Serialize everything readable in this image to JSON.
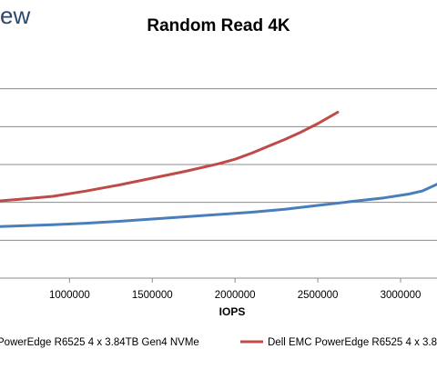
{
  "brand": {
    "text": "ew",
    "color": "#2b4a6b"
  },
  "chart_data": {
    "type": "line",
    "title": "Random Read 4K",
    "xlabel": "IOPS",
    "ylabel": "",
    "xlim": [
      580000,
      3220000
    ],
    "ylim": [
      0,
      3
    ],
    "x_ticks": [
      1000000,
      1500000,
      2000000,
      2500000,
      3000000
    ],
    "x_tick_labels": [
      "1000000",
      "1500000",
      "2000000",
      "2500000",
      "3000000"
    ],
    "y_gridlines": [
      0.5,
      1.0,
      1.5,
      2.0,
      2.5
    ],
    "grid": true,
    "legend_position": "bottom",
    "series": [
      {
        "name": "PowerEdge R6525 4 x 3.84TB Gen4 NVMe",
        "color": "#4a7ebb",
        "points": [
          [
            580000,
            0.68
          ],
          [
            700000,
            0.69
          ],
          [
            900000,
            0.705
          ],
          [
            1100000,
            0.725
          ],
          [
            1300000,
            0.75
          ],
          [
            1500000,
            0.78
          ],
          [
            1700000,
            0.81
          ],
          [
            1900000,
            0.84
          ],
          [
            2100000,
            0.87
          ],
          [
            2300000,
            0.91
          ],
          [
            2500000,
            0.96
          ],
          [
            2700000,
            1.01
          ],
          [
            2900000,
            1.06
          ],
          [
            3050000,
            1.11
          ],
          [
            3130000,
            1.15
          ],
          [
            3220000,
            1.24
          ]
        ]
      },
      {
        "name": "Dell EMC PowerEdge R6525 4 x 3.8",
        "color": "#be4b48",
        "points": [
          [
            580000,
            1.02
          ],
          [
            700000,
            1.04
          ],
          [
            900000,
            1.08
          ],
          [
            1100000,
            1.15
          ],
          [
            1300000,
            1.23
          ],
          [
            1500000,
            1.32
          ],
          [
            1700000,
            1.41
          ],
          [
            1900000,
            1.51
          ],
          [
            2000000,
            1.57
          ],
          [
            2100000,
            1.65
          ],
          [
            2200000,
            1.74
          ],
          [
            2300000,
            1.83
          ],
          [
            2400000,
            1.93
          ],
          [
            2500000,
            2.04
          ],
          [
            2620000,
            2.19
          ]
        ]
      }
    ]
  }
}
